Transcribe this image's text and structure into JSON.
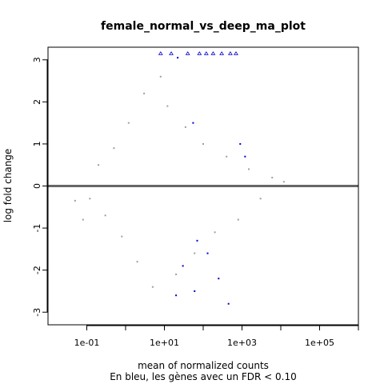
{
  "chart_data": {
    "type": "scatter",
    "title": "female_normal_vs_deep_ma_plot",
    "xlabel": "mean of normalized counts",
    "subtitle": "En bleu, les gènes avec un FDR < 0.10",
    "ylabel": "log fold change",
    "x_scale": "log10",
    "xlim": [
      0.01,
      1000000
    ],
    "ylim": [
      -3.3,
      3.3
    ],
    "x_ticks": [
      0.1,
      10,
      1000,
      100000
    ],
    "x_tick_labels": [
      "1e-01",
      "1e+01",
      "1e+03",
      "1e+05"
    ],
    "y_ticks": [
      -3,
      -2,
      -1,
      0,
      1,
      2,
      3
    ],
    "y_tick_labels": [
      "-3",
      "-2",
      "-1",
      "0",
      "1",
      "2",
      "3"
    ],
    "reference_line_y": 0,
    "clip_limits": [
      -3.15,
      3.15
    ],
    "colors": {
      "not_significant": "#9e9e9e",
      "significant": "#0000cc",
      "reference_line": "#666666"
    },
    "series": [
      {
        "significant": false,
        "points_x": [
          0.05,
          0.08,
          0.12,
          0.2,
          0.3,
          0.5,
          0.8,
          1.2,
          2,
          3,
          5,
          8,
          12,
          20,
          35,
          60,
          100,
          200,
          400,
          800,
          1500,
          3000,
          6000,
          12000
        ],
        "points_y": [
          -0.35,
          -0.8,
          -0.3,
          0.5,
          -0.7,
          0.9,
          -1.2,
          1.5,
          -1.8,
          2.2,
          -2.4,
          2.6,
          1.9,
          -2.1,
          1.4,
          -1.6,
          1.0,
          -1.1,
          0.7,
          -0.8,
          0.4,
          -0.3,
          0.2,
          0.1
        ]
      },
      {
        "significant": true,
        "points_x": [
          8,
          15,
          22,
          40,
          55,
          80,
          120,
          180,
          300,
          500,
          700,
          900,
          1200,
          30,
          60,
          130,
          250,
          450,
          20,
          70
        ],
        "points_y": [
          3.15,
          3.15,
          3.05,
          3.15,
          1.5,
          3.15,
          3.15,
          3.15,
          3.15,
          3.15,
          3.15,
          1.0,
          0.7,
          -1.9,
          -2.5,
          -1.6,
          -2.2,
          -2.8,
          -2.6,
          -1.3
        ]
      }
    ]
  }
}
